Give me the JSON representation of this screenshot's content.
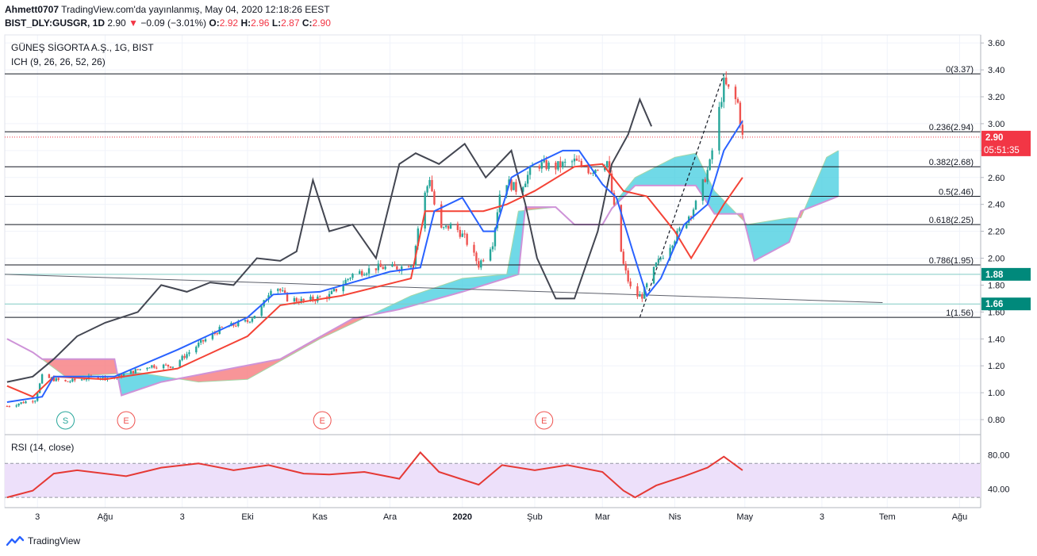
{
  "header": {
    "publisher": "Ahmett0707",
    "published_text": "TradingView.com'da yayınlanmış, May 04, 2020 12:18:26 EEST",
    "symbol": "BIST_DLY:GUSGR, 1D",
    "last": "2.90",
    "change": "−0.09 (−3.01%)",
    "o_label": "O:",
    "o": "2.92",
    "h_label": "H:",
    "h": "2.96",
    "l_label": "L:",
    "l": "2.87",
    "c_label": "C:",
    "c": "2.90"
  },
  "main_legend": {
    "name": "GÜNEŞ SİGORTA A.Ş., 1G, BIST",
    "indicator": "ICH (9, 26, 26, 52, 26)"
  },
  "rsi_legend": "RSI (14, close)",
  "footer": {
    "brand": "TradingView"
  },
  "colors": {
    "up": "#26a69a",
    "down": "#ef5350",
    "tenkan": "#2962ff",
    "kijun": "#f44336",
    "chikou": "#434651",
    "cloud_up": "#4dd0e1",
    "cloud_down": "#f77c80",
    "rsi": "#e53935",
    "rsi_band": "#ede0fa",
    "price_tag": "#f23645",
    "level_tag": "#00897b"
  },
  "chart_data": {
    "type": "candlestick",
    "price_axis": {
      "min": 0.7,
      "max": 3.66,
      "ticks": [
        "3.60",
        "3.40",
        "3.20",
        "3.00",
        "2.80",
        "2.60",
        "2.40",
        "2.20",
        "2.00",
        "1.80",
        "1.60",
        "1.40",
        "1.20",
        "1.00",
        "0.80"
      ]
    },
    "time_axis": [
      "3",
      "Ağu",
      "3",
      "Eki",
      "Kas",
      "Ara",
      "2020",
      "Şub",
      "Mar",
      "Nis",
      "May",
      "3",
      "Tem",
      "Ağu"
    ],
    "price_labels": {
      "last": "2.90",
      "countdown": "05:51:35",
      "level_a": "1.88",
      "level_b": "1.66"
    },
    "fib_levels": [
      {
        "label": "0(3.37)",
        "value": 3.37
      },
      {
        "label": "0.236(2.94)",
        "value": 2.94
      },
      {
        "label": "0.382(2.68)",
        "value": 2.68
      },
      {
        "label": "0.5(2.46)",
        "value": 2.46
      },
      {
        "label": "0.618(2.25)",
        "value": 2.25
      },
      {
        "label": "0.786(1.95)",
        "value": 1.95
      },
      {
        "label": "1(1.56)",
        "value": 1.56
      }
    ],
    "horizontal_lines": [
      1.88,
      1.66
    ],
    "last_price": 2.9,
    "trendline": {
      "from": {
        "date": "2019-06-19",
        "value": 1.88
      },
      "to": {
        "date": "2020-06-29",
        "value": 1.67
      }
    },
    "swing_line": {
      "from": {
        "date": "2020-03-17",
        "value": 1.56
      },
      "to": {
        "date": "2020-04-22",
        "value": 3.37
      }
    },
    "event_markers": [
      {
        "label": "S",
        "date": "2019-07-15",
        "kind": "split"
      },
      {
        "label": "E",
        "date": "2019-08-10",
        "kind": "earnings"
      },
      {
        "label": "E",
        "date": "2019-11-02",
        "kind": "earnings"
      },
      {
        "label": "E",
        "date": "2020-02-05",
        "kind": "earnings"
      }
    ],
    "anchors": {
      "close": [
        [
          "2019-06-20",
          0.9
        ],
        [
          "2019-07-02",
          0.95
        ],
        [
          "2019-07-05",
          1.12
        ],
        [
          "2019-07-15",
          1.08
        ],
        [
          "2019-07-28",
          1.12
        ],
        [
          "2019-08-05",
          1.11
        ],
        [
          "2019-08-20",
          1.2
        ],
        [
          "2019-08-30",
          1.2
        ],
        [
          "2019-09-10",
          1.36
        ],
        [
          "2019-09-20",
          1.48
        ],
        [
          "2019-10-01",
          1.53
        ],
        [
          "2019-10-07",
          1.63
        ],
        [
          "2019-10-12",
          1.82
        ],
        [
          "2019-10-18",
          1.7
        ],
        [
          "2019-10-25",
          1.68
        ],
        [
          "2019-11-05",
          1.72
        ],
        [
          "2019-11-15",
          1.88
        ],
        [
          "2019-11-25",
          1.93
        ],
        [
          "2019-12-05",
          1.93
        ],
        [
          "2019-12-11",
          1.97
        ],
        [
          "2019-12-14",
          2.35
        ],
        [
          "2019-12-18",
          2.6
        ],
        [
          "2019-12-22",
          2.2
        ],
        [
          "2019-12-28",
          2.25
        ],
        [
          "2020-01-02",
          2.15
        ],
        [
          "2020-01-08",
          1.95
        ],
        [
          "2020-01-14",
          2.12
        ],
        [
          "2020-01-18",
          2.6
        ],
        [
          "2020-01-25",
          2.5
        ],
        [
          "2020-02-01",
          2.7
        ],
        [
          "2020-02-10",
          2.68
        ],
        [
          "2020-02-18",
          2.72
        ],
        [
          "2020-02-25",
          2.65
        ],
        [
          "2020-03-03",
          2.72
        ],
        [
          "2020-03-07",
          2.25
        ],
        [
          "2020-03-10",
          1.95
        ],
        [
          "2020-03-14",
          1.72
        ],
        [
          "2020-03-18",
          1.72
        ],
        [
          "2020-03-24",
          1.95
        ],
        [
          "2020-04-01",
          2.15
        ],
        [
          "2020-04-10",
          2.4
        ],
        [
          "2020-04-16",
          2.7
        ],
        [
          "2020-04-22",
          3.3
        ],
        [
          "2020-04-28",
          3.15
        ],
        [
          "2020-04-30",
          2.9
        ]
      ],
      "tenkan": [
        [
          "2019-06-20",
          0.93
        ],
        [
          "2019-07-05",
          0.97
        ],
        [
          "2019-07-10",
          1.12
        ],
        [
          "2019-08-05",
          1.12
        ],
        [
          "2019-09-01",
          1.32
        ],
        [
          "2019-10-01",
          1.56
        ],
        [
          "2019-10-12",
          1.73
        ],
        [
          "2019-11-01",
          1.75
        ],
        [
          "2019-12-01",
          1.9
        ],
        [
          "2019-12-14",
          1.93
        ],
        [
          "2019-12-20",
          2.35
        ],
        [
          "2020-01-01",
          2.45
        ],
        [
          "2020-01-10",
          2.2
        ],
        [
          "2020-01-15",
          2.2
        ],
        [
          "2020-01-22",
          2.6
        ],
        [
          "2020-02-01",
          2.7
        ],
        [
          "2020-02-13",
          2.8
        ],
        [
          "2020-02-20",
          2.8
        ],
        [
          "2020-03-01",
          2.55
        ],
        [
          "2020-03-07",
          2.45
        ],
        [
          "2020-03-14",
          2.05
        ],
        [
          "2020-03-20",
          1.72
        ],
        [
          "2020-03-26",
          1.85
        ],
        [
          "2020-04-05",
          2.25
        ],
        [
          "2020-04-15",
          2.4
        ],
        [
          "2020-04-22",
          2.8
        ],
        [
          "2020-04-30",
          3.02
        ]
      ],
      "kijun": [
        [
          "2019-06-20",
          1.05
        ],
        [
          "2019-07-01",
          0.97
        ],
        [
          "2019-07-10",
          1.12
        ],
        [
          "2019-08-01",
          1.1
        ],
        [
          "2019-09-01",
          1.18
        ],
        [
          "2019-10-01",
          1.42
        ],
        [
          "2019-10-15",
          1.65
        ],
        [
          "2019-11-10",
          1.72
        ],
        [
          "2019-12-10",
          1.85
        ],
        [
          "2019-12-16",
          2.35
        ],
        [
          "2020-01-10",
          2.35
        ],
        [
          "2020-01-20",
          2.4
        ],
        [
          "2020-02-01",
          2.5
        ],
        [
          "2020-02-18",
          2.68
        ],
        [
          "2020-03-01",
          2.7
        ],
        [
          "2020-03-10",
          2.5
        ],
        [
          "2020-03-20",
          2.46
        ],
        [
          "2020-04-01",
          2.2
        ],
        [
          "2020-04-08",
          2.0
        ],
        [
          "2020-04-15",
          2.2
        ],
        [
          "2020-04-22",
          2.4
        ],
        [
          "2020-04-30",
          2.6
        ]
      ],
      "chikou": [
        [
          "2019-06-20",
          1.08
        ],
        [
          "2019-07-01",
          1.12
        ],
        [
          "2019-07-10",
          1.25
        ],
        [
          "2019-07-20",
          1.42
        ],
        [
          "2019-08-01",
          1.52
        ],
        [
          "2019-08-15",
          1.6
        ],
        [
          "2019-08-25",
          1.8
        ],
        [
          "2019-09-05",
          1.75
        ],
        [
          "2019-09-15",
          1.82
        ],
        [
          "2019-09-25",
          1.8
        ],
        [
          "2019-10-05",
          2.0
        ],
        [
          "2019-10-15",
          1.98
        ],
        [
          "2019-10-22",
          2.05
        ],
        [
          "2019-10-29",
          2.58
        ],
        [
          "2019-11-05",
          2.2
        ],
        [
          "2019-11-15",
          2.25
        ],
        [
          "2019-11-25",
          2.0
        ],
        [
          "2019-12-05",
          2.7
        ],
        [
          "2019-12-12",
          2.78
        ],
        [
          "2019-12-22",
          2.7
        ],
        [
          "2020-01-02",
          2.85
        ],
        [
          "2020-01-11",
          2.6
        ],
        [
          "2020-01-22",
          2.8
        ],
        [
          "2020-01-28",
          2.4
        ],
        [
          "2020-02-02",
          2.0
        ],
        [
          "2020-02-10",
          1.7
        ],
        [
          "2020-02-18",
          1.7
        ],
        [
          "2020-02-28",
          2.2
        ],
        [
          "2020-03-05",
          2.7
        ],
        [
          "2020-03-12",
          2.92
        ],
        [
          "2020-03-17",
          3.18
        ],
        [
          "2020-03-22",
          2.98
        ]
      ],
      "span_a": [
        [
          "2019-06-20",
          1.4
        ],
        [
          "2019-07-01",
          1.3
        ],
        [
          "2019-07-15",
          1.12
        ],
        [
          "2019-08-15",
          1.15
        ],
        [
          "2019-09-10",
          1.08
        ],
        [
          "2019-10-01",
          1.1
        ],
        [
          "2019-11-01",
          1.4
        ],
        [
          "2019-12-10",
          1.72
        ],
        [
          "2020-01-01",
          1.85
        ],
        [
          "2020-01-20",
          1.88
        ],
        [
          "2020-01-25",
          2.35
        ],
        [
          "2020-02-10",
          2.38
        ],
        [
          "2020-02-18",
          2.25
        ],
        [
          "2020-03-01",
          2.25
        ],
        [
          "2020-03-08",
          2.45
        ],
        [
          "2020-03-15",
          2.6
        ],
        [
          "2020-04-01",
          2.75
        ],
        [
          "2020-04-10",
          2.78
        ],
        [
          "2020-04-18",
          2.5
        ],
        [
          "2020-05-02",
          2.25
        ],
        [
          "2020-05-20",
          2.3
        ],
        [
          "2020-05-25",
          2.3
        ],
        [
          "2020-06-05",
          2.75
        ],
        [
          "2020-06-10",
          2.8
        ]
      ],
      "span_b": [
        [
          "2019-06-20",
          1.4
        ],
        [
          "2019-07-01",
          1.3
        ],
        [
          "2019-07-05",
          1.25
        ],
        [
          "2019-08-05",
          1.25
        ],
        [
          "2019-08-08",
          0.98
        ],
        [
          "2019-08-25",
          1.08
        ],
        [
          "2019-10-15",
          1.25
        ],
        [
          "2019-11-15",
          1.55
        ],
        [
          "2019-12-05",
          1.62
        ],
        [
          "2020-01-01",
          1.75
        ],
        [
          "2020-01-25",
          1.88
        ],
        [
          "2020-01-28",
          2.38
        ],
        [
          "2020-02-10",
          2.38
        ],
        [
          "2020-02-18",
          2.25
        ],
        [
          "2020-03-01",
          2.25
        ],
        [
          "2020-03-05",
          2.37
        ],
        [
          "2020-03-15",
          2.54
        ],
        [
          "2020-04-10",
          2.54
        ],
        [
          "2020-04-18",
          2.33
        ],
        [
          "2020-04-30",
          2.33
        ],
        [
          "2020-05-05",
          1.98
        ],
        [
          "2020-05-20",
          2.12
        ],
        [
          "2020-05-25",
          2.35
        ],
        [
          "2020-06-10",
          2.46
        ]
      ]
    },
    "rsi": {
      "levels": [
        70,
        30
      ],
      "ticks": [
        "80.00",
        "40.00"
      ],
      "range": [
        18,
        102
      ],
      "anchors": [
        [
          "2019-06-20",
          30
        ],
        [
          "2019-07-01",
          38
        ],
        [
          "2019-07-10",
          58
        ],
        [
          "2019-07-20",
          62
        ],
        [
          "2019-08-10",
          55
        ],
        [
          "2019-08-25",
          65
        ],
        [
          "2019-09-10",
          70
        ],
        [
          "2019-09-25",
          62
        ],
        [
          "2019-10-10",
          68
        ],
        [
          "2019-10-25",
          58
        ],
        [
          "2019-11-05",
          57
        ],
        [
          "2019-11-20",
          60
        ],
        [
          "2019-12-05",
          52
        ],
        [
          "2019-12-14",
          83
        ],
        [
          "2019-12-22",
          60
        ],
        [
          "2020-01-08",
          45
        ],
        [
          "2020-01-18",
          68
        ],
        [
          "2020-02-01",
          62
        ],
        [
          "2020-02-15",
          68
        ],
        [
          "2020-03-01",
          60
        ],
        [
          "2020-03-10",
          38
        ],
        [
          "2020-03-15",
          30
        ],
        [
          "2020-03-24",
          44
        ],
        [
          "2020-04-05",
          55
        ],
        [
          "2020-04-15",
          65
        ],
        [
          "2020-04-22",
          78
        ],
        [
          "2020-04-30",
          62
        ]
      ]
    }
  }
}
